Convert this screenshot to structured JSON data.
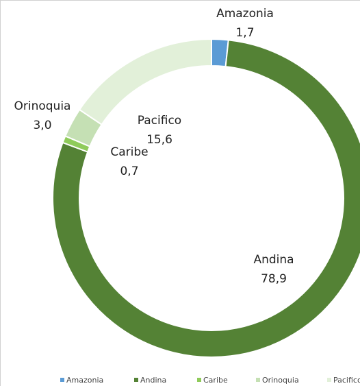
{
  "chart_data": {
    "type": "donut",
    "categories": [
      "Amazonia",
      "Andina",
      "Caribe",
      "Orinoquia",
      "Pacifico"
    ],
    "values": [
      1.7,
      78.9,
      0.7,
      3.0,
      15.6
    ],
    "value_labels": [
      "1,7",
      "78,9",
      "0,7",
      "3,0",
      "15,6"
    ],
    "colors": [
      "#5b9bd5",
      "#548235",
      "#8fcb5a",
      "#c5e0b4",
      "#e2f0d9"
    ],
    "legend": "bottom"
  }
}
